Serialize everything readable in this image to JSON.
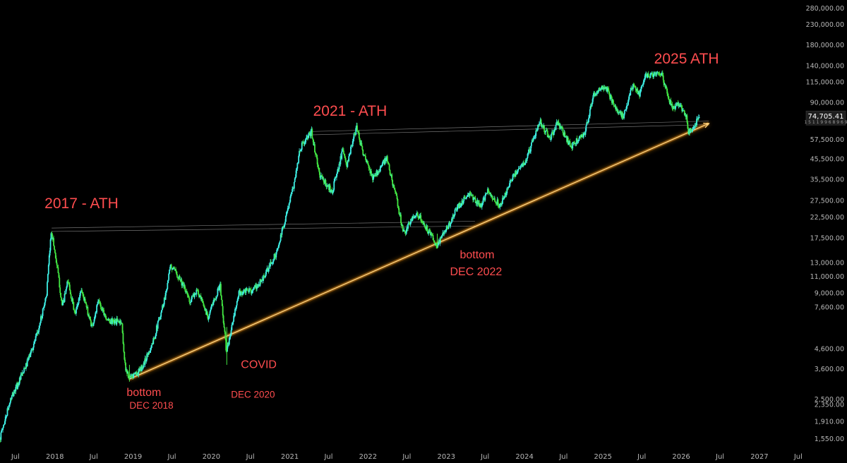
{
  "chart_data": {
    "type": "candlestick",
    "title": "",
    "xlabel": "",
    "ylabel": "",
    "y_scale": "log",
    "ylim": [
      1450,
      290000
    ],
    "xlim": [
      "2017-04-20",
      "2027-07-31"
    ],
    "grid": false,
    "y_axis_position": "right",
    "x_ticks": [
      {
        "date": "2017-07-01",
        "label": "Jul"
      },
      {
        "date": "2018-01-01",
        "label": "2018"
      },
      {
        "date": "2018-07-01",
        "label": "Jul"
      },
      {
        "date": "2019-01-01",
        "label": "2019"
      },
      {
        "date": "2019-07-01",
        "label": "Jul"
      },
      {
        "date": "2020-01-01",
        "label": "2020"
      },
      {
        "date": "2020-07-01",
        "label": "Jul"
      },
      {
        "date": "2021-01-01",
        "label": "2021"
      },
      {
        "date": "2021-07-01",
        "label": "Jul"
      },
      {
        "date": "2022-01-01",
        "label": "2022"
      },
      {
        "date": "2022-07-01",
        "label": "Jul"
      },
      {
        "date": "2023-01-01",
        "label": "2023"
      },
      {
        "date": "2023-07-01",
        "label": "Jul"
      },
      {
        "date": "2024-01-01",
        "label": "2024"
      },
      {
        "date": "2024-07-01",
        "label": "Jul"
      },
      {
        "date": "2025-01-01",
        "label": "2025"
      },
      {
        "date": "2025-07-01",
        "label": "Jul"
      },
      {
        "date": "2026-01-01",
        "label": "2026"
      },
      {
        "date": "2026-07-01",
        "label": "Jul"
      },
      {
        "date": "2027-01-01",
        "label": "2027"
      },
      {
        "date": "2027-07-01",
        "label": "Jul"
      }
    ],
    "y_ticks": [
      {
        "value": 280000,
        "label": "280,000.00"
      },
      {
        "value": 230000,
        "label": "230,000.00"
      },
      {
        "value": 180000,
        "label": "180,000.00"
      },
      {
        "value": 140000,
        "label": "140,000.00"
      },
      {
        "value": 115000,
        "label": "115,000.00"
      },
      {
        "value": 90000,
        "label": "90,000.00"
      },
      {
        "value": 57500,
        "label": "57,500.00"
      },
      {
        "value": 45500,
        "label": "45,500.00"
      },
      {
        "value": 35500,
        "label": "35,500.00"
      },
      {
        "value": 27500,
        "label": "27,500.00"
      },
      {
        "value": 22500,
        "label": "22,500.00"
      },
      {
        "value": 17500,
        "label": "17,500.00"
      },
      {
        "value": 13000,
        "label": "13,000.00"
      },
      {
        "value": 11000,
        "label": "11,000.00"
      },
      {
        "value": 9000,
        "label": "9,000.00"
      },
      {
        "value": 7600,
        "label": "7,600.00"
      },
      {
        "value": 4600,
        "label": "4,600.00"
      },
      {
        "value": 3600,
        "label": "3,600.00"
      },
      {
        "value": 2500,
        "label": "2,500.00"
      },
      {
        "value": 2350,
        "label": "2,350.00"
      },
      {
        "value": 1910,
        "label": "1,910.00"
      },
      {
        "value": 1550,
        "label": "1,550.00"
      }
    ],
    "price_key_points": [
      {
        "date": "2017-04-20",
        "price": 1550
      },
      {
        "date": "2017-06-10",
        "price": 2500
      },
      {
        "date": "2017-08-15",
        "price": 3600
      },
      {
        "date": "2017-10-15",
        "price": 5600
      },
      {
        "date": "2017-11-25",
        "price": 9000
      },
      {
        "date": "2017-12-17",
        "price": 19500
      },
      {
        "date": "2018-01-15",
        "price": 12000
      },
      {
        "date": "2018-02-06",
        "price": 7600
      },
      {
        "date": "2018-03-05",
        "price": 10500
      },
      {
        "date": "2018-04-07",
        "price": 6900
      },
      {
        "date": "2018-05-05",
        "price": 9500
      },
      {
        "date": "2018-06-25",
        "price": 6000
      },
      {
        "date": "2018-07-25",
        "price": 8200
      },
      {
        "date": "2018-09-10",
        "price": 6400
      },
      {
        "date": "2018-11-10",
        "price": 6400
      },
      {
        "date": "2018-11-25",
        "price": 3800
      },
      {
        "date": "2018-12-15",
        "price": 3200
      },
      {
        "date": "2019-02-10",
        "price": 3600
      },
      {
        "date": "2019-04-05",
        "price": 5000
      },
      {
        "date": "2019-05-30",
        "price": 8500
      },
      {
        "date": "2019-06-26",
        "price": 12500
      },
      {
        "date": "2019-08-05",
        "price": 11000
      },
      {
        "date": "2019-09-25",
        "price": 8200
      },
      {
        "date": "2019-10-27",
        "price": 9300
      },
      {
        "date": "2019-12-18",
        "price": 6800
      },
      {
        "date": "2020-02-12",
        "price": 10000
      },
      {
        "date": "2020-03-13",
        "price": 4400
      },
      {
        "date": "2020-05-10",
        "price": 9000
      },
      {
        "date": "2020-07-25",
        "price": 9500
      },
      {
        "date": "2020-09-05",
        "price": 11000
      },
      {
        "date": "2020-11-05",
        "price": 15000
      },
      {
        "date": "2020-12-20",
        "price": 24000
      },
      {
        "date": "2021-01-20",
        "price": 33000
      },
      {
        "date": "2021-02-20",
        "price": 52000
      },
      {
        "date": "2021-04-14",
        "price": 63000
      },
      {
        "date": "2021-05-20",
        "price": 38000
      },
      {
        "date": "2021-06-25",
        "price": 33000
      },
      {
        "date": "2021-07-20",
        "price": 31000
      },
      {
        "date": "2021-09-05",
        "price": 50000
      },
      {
        "date": "2021-09-25",
        "price": 42000
      },
      {
        "date": "2021-11-10",
        "price": 67000
      },
      {
        "date": "2021-12-15",
        "price": 47000
      },
      {
        "date": "2022-01-25",
        "price": 36000
      },
      {
        "date": "2022-03-30",
        "price": 46000
      },
      {
        "date": "2022-05-10",
        "price": 30000
      },
      {
        "date": "2022-06-18",
        "price": 18500
      },
      {
        "date": "2022-08-15",
        "price": 24000
      },
      {
        "date": "2022-10-10",
        "price": 19200
      },
      {
        "date": "2022-11-20",
        "price": 16000
      },
      {
        "date": "2023-01-20",
        "price": 21000
      },
      {
        "date": "2023-02-20",
        "price": 25000
      },
      {
        "date": "2023-04-15",
        "price": 30000
      },
      {
        "date": "2023-06-15",
        "price": 26000
      },
      {
        "date": "2023-07-15",
        "price": 31000
      },
      {
        "date": "2023-09-10",
        "price": 26000
      },
      {
        "date": "2023-11-10",
        "price": 37000
      },
      {
        "date": "2024-01-10",
        "price": 45000
      },
      {
        "date": "2024-03-14",
        "price": 72000
      },
      {
        "date": "2024-05-01",
        "price": 58000
      },
      {
        "date": "2024-06-05",
        "price": 71000
      },
      {
        "date": "2024-08-05",
        "price": 53000
      },
      {
        "date": "2024-10-10",
        "price": 62000
      },
      {
        "date": "2024-11-20",
        "price": 98000
      },
      {
        "date": "2024-12-17",
        "price": 107000
      },
      {
        "date": "2025-01-21",
        "price": 106000
      },
      {
        "date": "2025-02-28",
        "price": 84000
      },
      {
        "date": "2025-04-08",
        "price": 76000
      },
      {
        "date": "2025-05-22",
        "price": 111000
      },
      {
        "date": "2025-06-22",
        "price": 100000
      },
      {
        "date": "2025-07-14",
        "price": 123000
      },
      {
        "date": "2025-08-14",
        "price": 124000
      },
      {
        "date": "2025-10-06",
        "price": 126000
      },
      {
        "date": "2025-10-20",
        "price": 108000
      },
      {
        "date": "2025-11-21",
        "price": 84000
      },
      {
        "date": "2025-12-20",
        "price": 88000
      },
      {
        "date": "2026-01-25",
        "price": 78000
      },
      {
        "date": "2026-02-05",
        "price": 62000
      },
      {
        "date": "2026-03-01",
        "price": 67000
      },
      {
        "date": "2026-03-25",
        "price": 74705
      }
    ],
    "last_price": {
      "value": 74705.41,
      "label": "74,705.41",
      "sub": "1 5 1 1 9 9 6 8 9 6 9"
    },
    "support_trendline": {
      "start": {
        "date": "2018-12-15",
        "price": 3200
      },
      "end": {
        "date": "2026-05-10",
        "price": 70000
      },
      "color": "#ff9f1a"
    },
    "resistance_lines": [
      {
        "start": {
          "date": "2017-12-17",
          "price": 19800
        },
        "end": {
          "date": "2023-05-15",
          "price": 21500
        }
      },
      {
        "start": {
          "date": "2017-12-17",
          "price": 19000
        },
        "end": {
          "date": "2023-05-15",
          "price": 20300
        }
      },
      {
        "start": {
          "date": "2021-04-14",
          "price": 63500
        },
        "end": {
          "date": "2026-05-10",
          "price": 72000
        }
      },
      {
        "start": {
          "date": "2021-04-14",
          "price": 61000
        },
        "end": {
          "date": "2026-05-10",
          "price": 69000
        }
      }
    ],
    "colors": {
      "up": "#3ff0e6",
      "down": "#43e843",
      "background": "#000000",
      "annotation": "#ff4d4f",
      "trendline": "#ff9f1a",
      "axis_text": "#b8b8b8"
    },
    "annotations": [
      {
        "text": "2017 - ATH",
        "date": "2017-12-17",
        "price": 19500,
        "size": "large"
      },
      {
        "text": "2021 - ATH",
        "date": "2021-11-10",
        "price": 67000,
        "size": "large"
      },
      {
        "text": "2025 ATH",
        "date": "2025-10-06",
        "price": 126000,
        "size": "large"
      },
      {
        "text": "bottom",
        "date": "2018-12-15",
        "price": 3200,
        "size": "medium"
      },
      {
        "text": "DEC 2018",
        "date": "2018-12-15",
        "price": 3200,
        "size": "small"
      },
      {
        "text": "COVID",
        "date": "2020-03-13",
        "price": 4400,
        "size": "medium"
      },
      {
        "text": "DEC 2020",
        "date": "2020-03-13",
        "price": 4400,
        "size": "small"
      },
      {
        "text": "bottom",
        "date": "2022-11-20",
        "price": 16000,
        "size": "medium"
      },
      {
        "text": "DEC 2022",
        "date": "2022-11-20",
        "price": 16000,
        "size": "medium"
      }
    ]
  }
}
